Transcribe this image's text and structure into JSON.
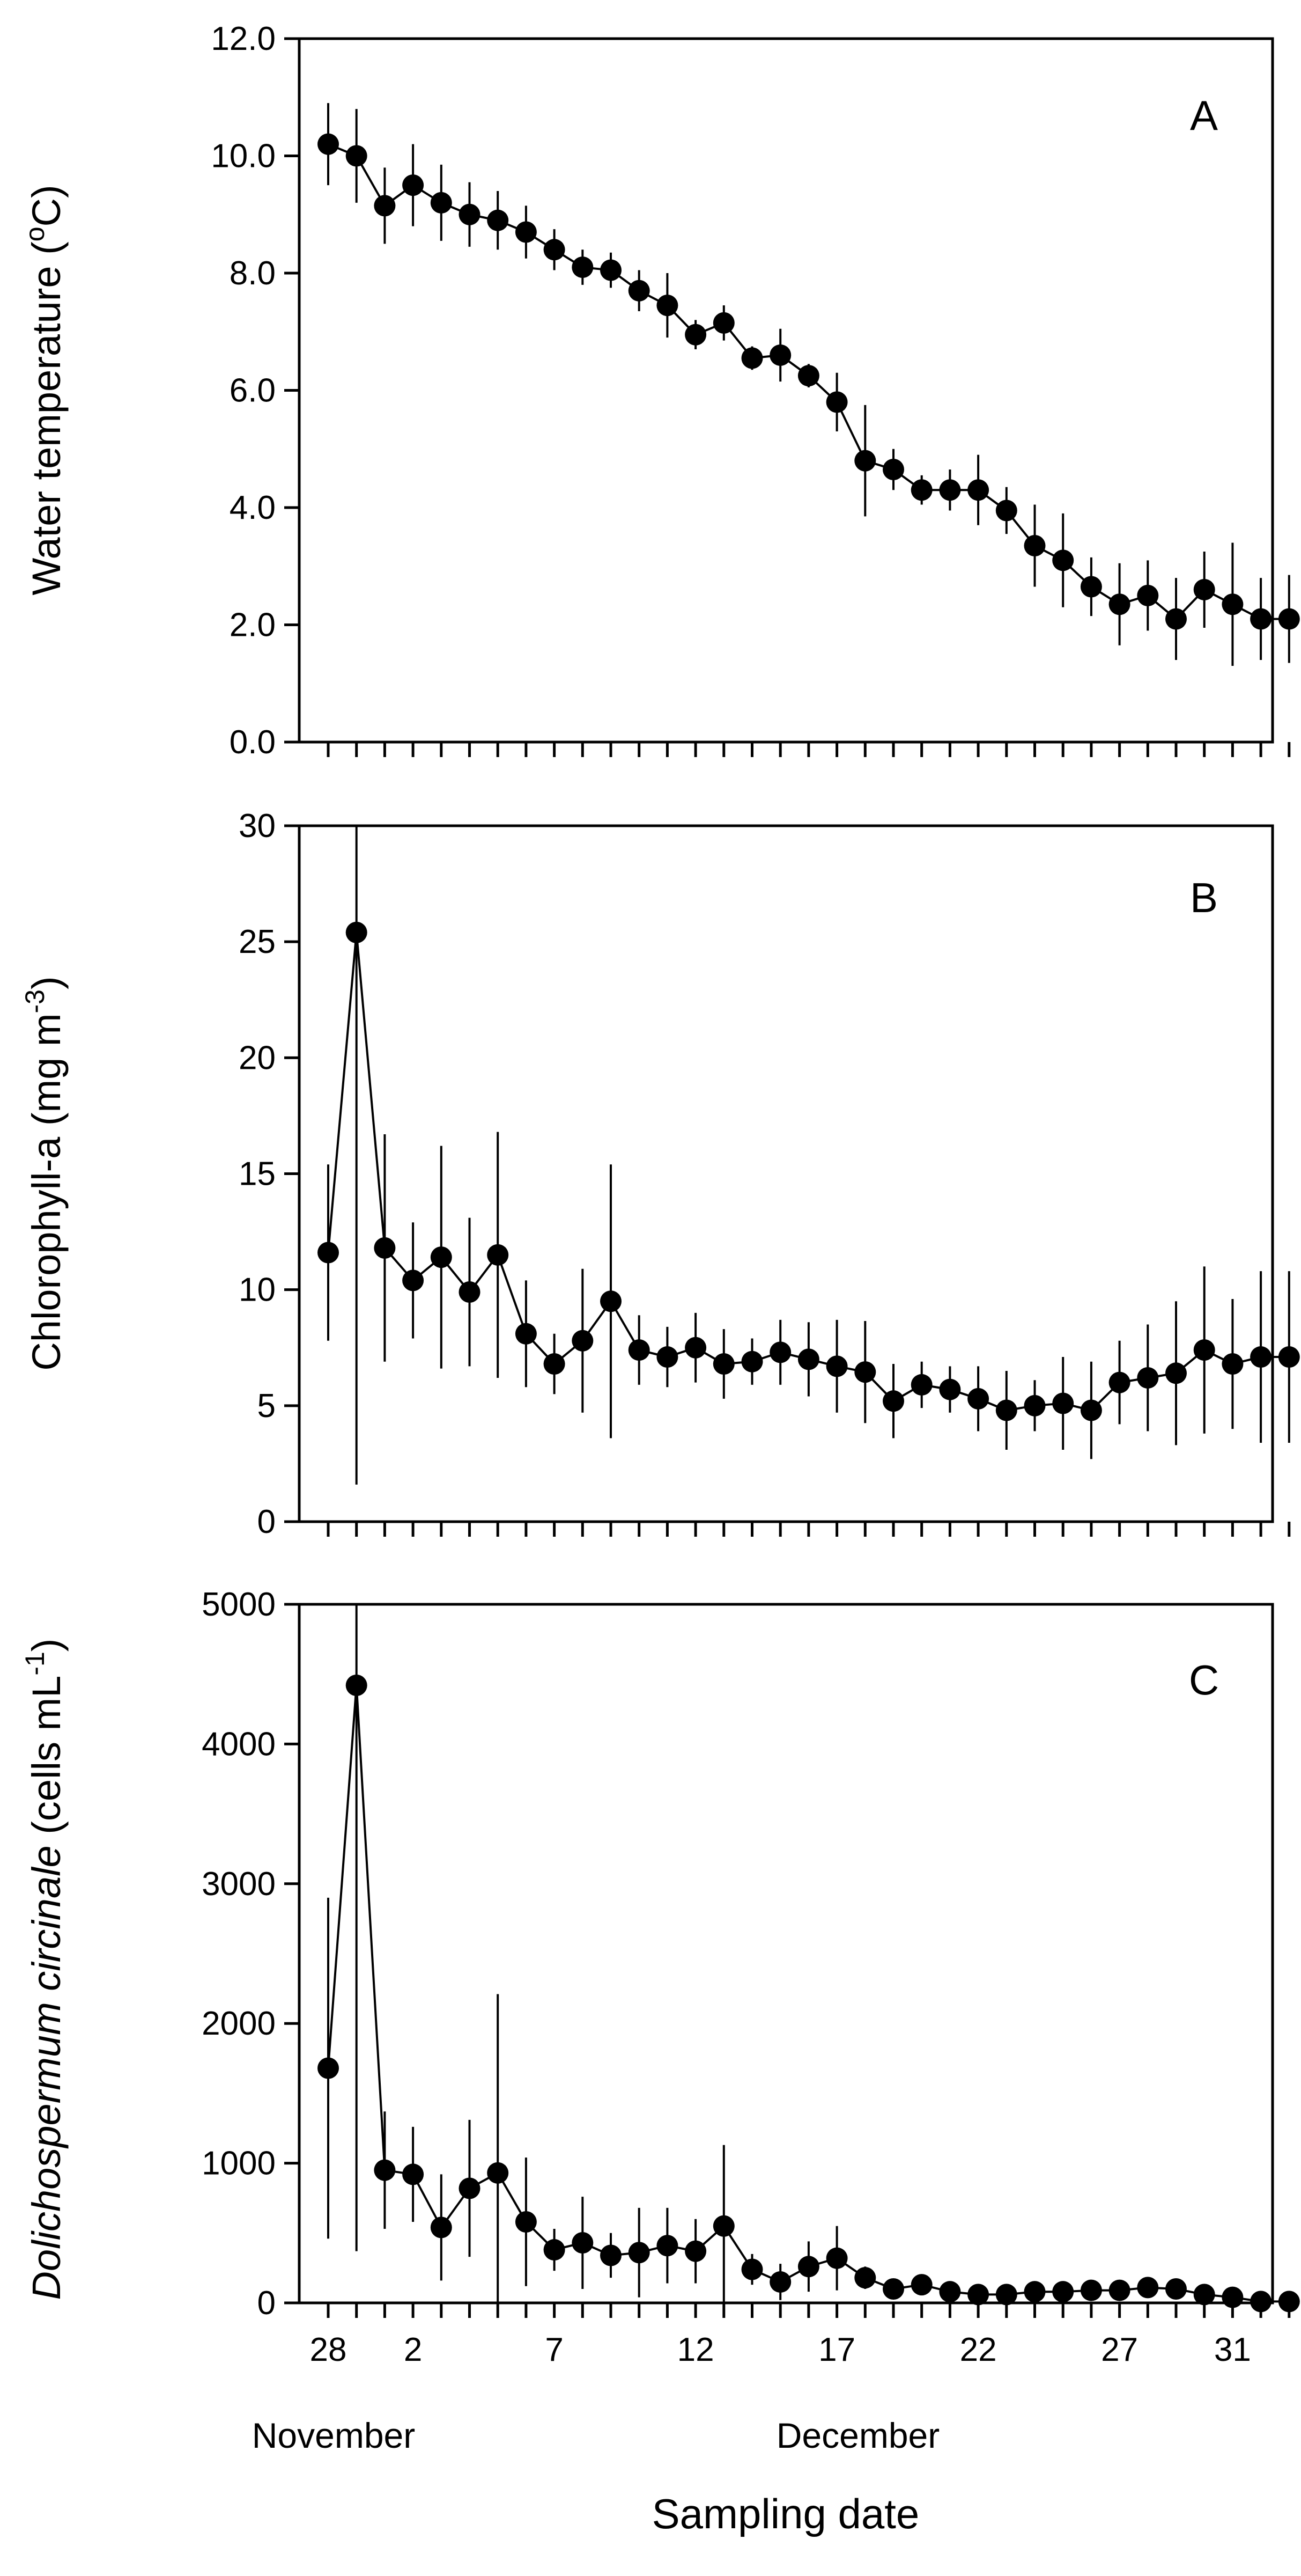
{
  "chart_data": [
    {
      "type": "scatter",
      "panel": "A",
      "ylabel": "Water temperature (oC)",
      "ylabel_base": "Water temperature (",
      "ylabel_sup": "o",
      "ylabel_tail": "C)",
      "ylim": [
        0,
        12
      ],
      "yticks": [
        "0.0",
        "2.0",
        "4.0",
        "6.0",
        "8.0",
        "10.0",
        "12.0"
      ],
      "ytick_values": [
        0,
        2,
        4,
        6,
        8,
        10,
        12
      ],
      "x": [
        0,
        1,
        2,
        3,
        4,
        5,
        6,
        7,
        8,
        9,
        10,
        11,
        12,
        13,
        14,
        15,
        16,
        17,
        18,
        19,
        20,
        21,
        22,
        23,
        24,
        25,
        26,
        27,
        28,
        29,
        30,
        31,
        32,
        33,
        34
      ],
      "values": [
        10.2,
        10.0,
        9.15,
        9.5,
        9.2,
        9.0,
        8.9,
        8.7,
        8.4,
        8.1,
        8.05,
        7.7,
        7.45,
        6.95,
        7.15,
        6.55,
        6.6,
        6.25,
        5.8,
        4.8,
        4.65,
        4.3,
        4.3,
        4.3,
        3.95,
        3.35,
        3.1,
        2.65,
        2.35,
        2.5,
        2.1,
        2.6,
        2.35,
        2.1,
        2.1
      ],
      "errors": [
        0.7,
        0.8,
        0.65,
        0.7,
        0.65,
        0.55,
        0.5,
        0.45,
        0.35,
        0.3,
        0.3,
        0.35,
        0.55,
        0.25,
        0.3,
        0.2,
        0.45,
        0.2,
        0.5,
        0.95,
        0.35,
        0.25,
        0.35,
        0.6,
        0.4,
        0.7,
        0.8,
        0.5,
        0.7,
        0.6,
        0.7,
        0.65,
        1.05,
        0.7,
        0.75
      ]
    },
    {
      "type": "scatter",
      "panel": "B",
      "ylabel": "Chlorophyll-a (mg m-3)",
      "ylabel_base": "Chlorophyll-a (mg m",
      "ylabel_sup": "-3",
      "ylabel_tail": ")",
      "ylim": [
        0,
        30
      ],
      "yticks": [
        "0",
        "5",
        "10",
        "15",
        "20",
        "25",
        "30"
      ],
      "ytick_values": [
        0,
        5,
        10,
        15,
        20,
        25,
        30
      ],
      "x": [
        0,
        1,
        2,
        3,
        4,
        5,
        6,
        7,
        8,
        9,
        10,
        11,
        12,
        13,
        14,
        15,
        16,
        17,
        18,
        19,
        20,
        21,
        22,
        23,
        24,
        25,
        26,
        27,
        28,
        29,
        30,
        31,
        32,
        33,
        34
      ],
      "values": [
        11.6,
        25.4,
        11.8,
        10.4,
        11.4,
        9.9,
        11.5,
        8.1,
        6.8,
        7.8,
        9.5,
        7.4,
        7.1,
        7.5,
        6.8,
        6.9,
        7.3,
        7.0,
        6.7,
        6.45,
        5.2,
        5.9,
        5.7,
        5.3,
        4.8,
        5.0,
        5.1,
        4.8,
        6.0,
        6.2,
        6.4,
        7.4,
        6.8,
        7.1,
        7.1
      ],
      "errors": [
        3.8,
        23.8,
        4.9,
        2.5,
        4.8,
        3.2,
        5.3,
        2.3,
        1.3,
        3.1,
        5.9,
        1.5,
        1.3,
        1.5,
        1.5,
        1.0,
        1.4,
        1.6,
        2.0,
        2.2,
        1.6,
        1.0,
        1.0,
        1.4,
        1.7,
        1.1,
        2.0,
        2.1,
        1.8,
        2.3,
        3.1,
        3.6,
        2.8,
        3.7,
        3.7
      ]
    },
    {
      "type": "scatter",
      "panel": "C",
      "ylabel": "Dolichospermum circinale (cells mL-1)",
      "ylabel_italic": "Dolichospermum circinale",
      "ylabel_base": " (cells mL",
      "ylabel_sup": "-1",
      "ylabel_tail": ")",
      "ylim": [
        0,
        5000
      ],
      "yticks": [
        "0",
        "1000",
        "2000",
        "3000",
        "4000",
        "5000"
      ],
      "ytick_values": [
        0,
        1000,
        2000,
        3000,
        4000,
        5000
      ],
      "x": [
        0,
        1,
        2,
        3,
        4,
        5,
        6,
        7,
        8,
        9,
        10,
        11,
        12,
        13,
        14,
        15,
        16,
        17,
        18,
        19,
        20,
        21,
        22,
        23,
        24,
        25,
        26,
        27,
        28,
        29,
        30,
        31,
        32,
        33,
        34
      ],
      "values": [
        1680,
        4420,
        950,
        920,
        540,
        820,
        930,
        580,
        380,
        430,
        340,
        360,
        410,
        370,
        550,
        240,
        150,
        260,
        320,
        180,
        100,
        130,
        80,
        60,
        60,
        80,
        80,
        90,
        90,
        110,
        100,
        60,
        40,
        10,
        10
      ],
      "errors": [
        1220,
        4050,
        420,
        340,
        380,
        490,
        1280,
        460,
        150,
        330,
        160,
        320,
        270,
        230,
        580,
        110,
        130,
        180,
        230,
        80,
        60,
        50,
        30,
        30,
        30,
        40,
        30,
        30,
        30,
        40,
        40,
        30,
        20,
        10,
        10
      ]
    }
  ],
  "x_tick_labels": [
    "28",
    "2",
    "7",
    "12",
    "17",
    "22",
    "27",
    "31"
  ],
  "x_tick_label_index": [
    0,
    3,
    8,
    13,
    18,
    23,
    28,
    32
  ],
  "month_labels": [
    "November",
    "December"
  ],
  "xlabel": "Sampling date"
}
